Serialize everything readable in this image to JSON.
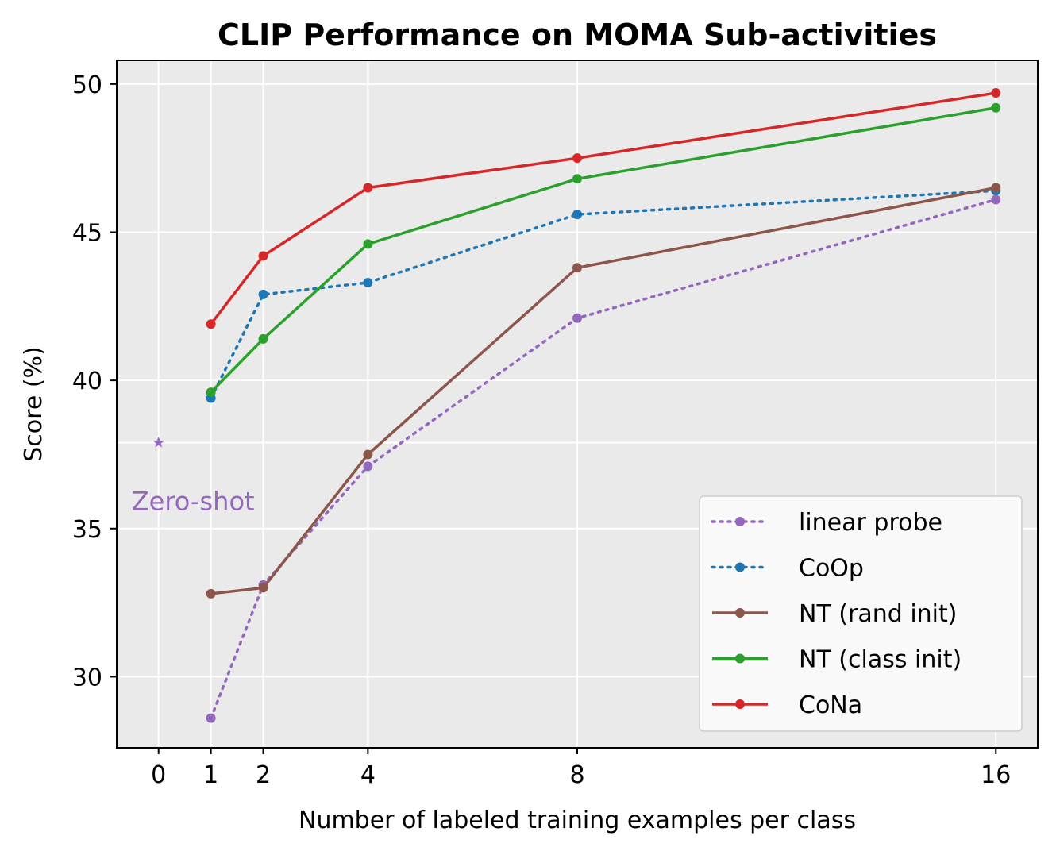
{
  "chart_data": {
    "type": "line",
    "title": "CLIP Performance on MOMA Sub-activities",
    "xlabel": "Number of labeled training examples per class",
    "ylabel": "Score (%)",
    "xticks": [
      "0",
      "1",
      "2",
      "4",
      "8",
      "16"
    ],
    "xtick_values": [
      0,
      1,
      2,
      4,
      8,
      16
    ],
    "yticks": [
      "30",
      "35",
      "40",
      "45",
      "50"
    ],
    "ytick_values": [
      30,
      35,
      40,
      45,
      50
    ],
    "xlim": [
      -0.8,
      16.8
    ],
    "ylim": [
      27.6,
      50.8
    ],
    "background": "#EAEAEA",
    "grid": "white",
    "series": [
      {
        "name": "linear probe",
        "color": "#9467bd",
        "style": "dotted",
        "x": [
          1,
          2,
          4,
          8,
          16
        ],
        "y": [
          28.6,
          33.1,
          37.1,
          42.1,
          46.1
        ]
      },
      {
        "name": "CoOp",
        "color": "#1f77b4",
        "style": "dotted",
        "x": [
          1,
          2,
          4,
          8,
          16
        ],
        "y": [
          39.4,
          42.9,
          43.3,
          45.6,
          46.4
        ]
      },
      {
        "name": "NT (rand init)",
        "color": "#8c564b",
        "style": "solid",
        "x": [
          1,
          2,
          4,
          8,
          16
        ],
        "y": [
          32.8,
          33.0,
          37.5,
          43.8,
          46.5
        ]
      },
      {
        "name": "NT (class init)",
        "color": "#2ca02c",
        "style": "solid",
        "x": [
          1,
          2,
          4,
          8,
          16
        ],
        "y": [
          39.6,
          41.4,
          44.6,
          46.8,
          49.2
        ]
      },
      {
        "name": "CoNa",
        "color": "#d62728",
        "style": "solid",
        "x": [
          1,
          2,
          4,
          8,
          16
        ],
        "y": [
          41.9,
          44.2,
          46.5,
          47.5,
          49.7
        ]
      }
    ],
    "zero_shot": {
      "label": "Zero-shot",
      "x": 0,
      "y": 37.9,
      "color": "#9467bd"
    },
    "legend_position": "lower-right"
  }
}
